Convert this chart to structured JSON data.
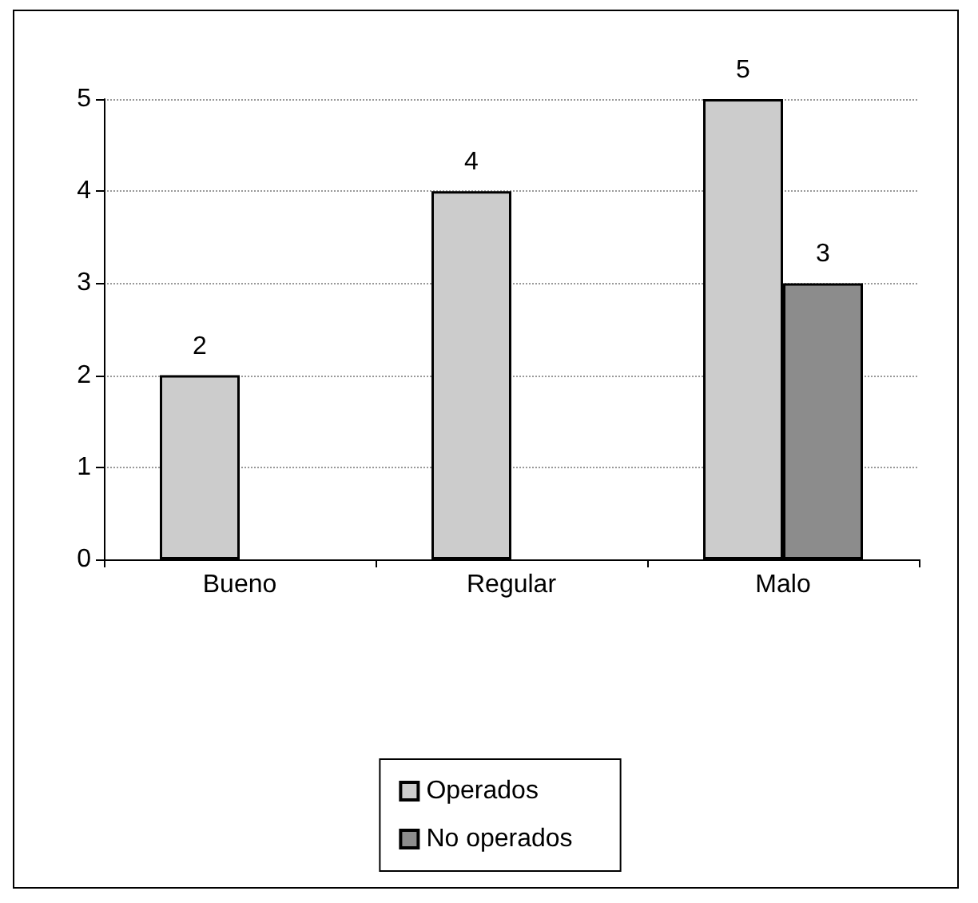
{
  "chart_data": {
    "type": "bar",
    "categories": [
      "Bueno",
      "Regular",
      "Malo"
    ],
    "series": [
      {
        "name": "Operados",
        "color": "#cccccc",
        "values": [
          2,
          4,
          5
        ]
      },
      {
        "name": "No operados",
        "color": "#8c8c8c",
        "values": [
          null,
          null,
          3
        ]
      }
    ],
    "ylim": [
      0,
      5
    ],
    "yticks": [
      0,
      1,
      2,
      3,
      4,
      5
    ],
    "grid": "y",
    "legend": "bottom",
    "data_labels": true
  }
}
